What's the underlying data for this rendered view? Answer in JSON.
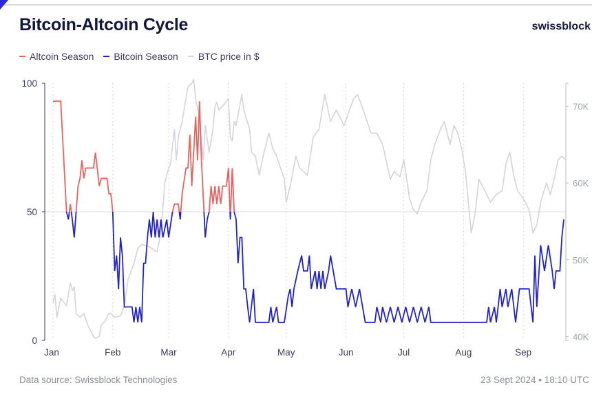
{
  "header": {
    "title": "Bitcoin-Altcoin Cycle",
    "brand": "swissblock"
  },
  "legend": [
    {
      "label": "Altcoin Season",
      "color": "#e8625f"
    },
    {
      "label": "Bitcoin Season",
      "color": "#2323c4"
    },
    {
      "label": "BTC price in $",
      "color": "#d3d4dc"
    }
  ],
  "footer": {
    "source": "Data source: Swissblock Technologies",
    "timestamp": "23 Sept 2024 • 18:10 UTC"
  },
  "chart_data": {
    "type": "line",
    "title": "Bitcoin-Altcoin Cycle",
    "x_range": [
      "2024-01-01",
      "2024-09-23"
    ],
    "x_ticks": [
      "Jan",
      "Feb",
      "Mar",
      "Apr",
      "May",
      "Jun",
      "Jul",
      "Aug",
      "Sep"
    ],
    "y_left": {
      "range": [
        0,
        100
      ],
      "ticks": [
        "0",
        "50",
        "100"
      ],
      "threshold": 50
    },
    "y_right": {
      "range": [
        39.5,
        73
      ],
      "ticks": [
        "40K",
        "50K",
        "60K",
        "70K"
      ],
      "unit": "K $"
    },
    "grid": "vertical dotted at months, horizontal at 50",
    "legend_position": "top-left",
    "colors": {
      "above_threshold": "#e8625f",
      "below_threshold": "#2323c4",
      "price": "#d3d4dc"
    },
    "index_series": {
      "name_above": "Altcoin Season",
      "name_below": "Bitcoin Season",
      "points": [
        [
          "01-01",
          93
        ],
        [
          "01-05",
          93
        ],
        [
          "01-08",
          50
        ],
        [
          "01-09",
          47
        ],
        [
          "01-10",
          53
        ],
        [
          "01-11",
          47
        ],
        [
          "01-12",
          40
        ],
        [
          "01-13",
          50
        ],
        [
          "01-14",
          60
        ],
        [
          "01-15",
          63
        ],
        [
          "01-16",
          70
        ],
        [
          "01-17",
          63
        ],
        [
          "01-18",
          67
        ],
        [
          "01-22",
          67
        ],
        [
          "01-23",
          73
        ],
        [
          "01-25",
          60
        ],
        [
          "01-26",
          63
        ],
        [
          "01-29",
          63
        ],
        [
          "01-30",
          57
        ],
        [
          "01-31",
          57
        ],
        [
          "02-01",
          50
        ],
        [
          "02-02",
          27
        ],
        [
          "02-03",
          33
        ],
        [
          "02-04",
          20
        ],
        [
          "02-05",
          40
        ],
        [
          "02-06",
          33
        ],
        [
          "02-07",
          13
        ],
        [
          "02-11",
          13
        ],
        [
          "02-12",
          7
        ],
        [
          "02-13",
          13
        ],
        [
          "02-14",
          7
        ],
        [
          "02-15",
          13
        ],
        [
          "02-16",
          7
        ],
        [
          "02-17",
          30
        ],
        [
          "02-18",
          30
        ],
        [
          "02-19",
          40
        ],
        [
          "02-20",
          47
        ],
        [
          "02-21",
          40
        ],
        [
          "02-22",
          50
        ],
        [
          "02-23",
          40
        ],
        [
          "02-24",
          47
        ],
        [
          "02-25",
          40
        ],
        [
          "02-26",
          47
        ],
        [
          "02-27",
          40
        ],
        [
          "02-29",
          47
        ],
        [
          "03-01",
          40
        ],
        [
          "03-03",
          50
        ],
        [
          "03-04",
          53
        ],
        [
          "03-06",
          53
        ],
        [
          "03-07",
          47
        ],
        [
          "03-08",
          57
        ],
        [
          "03-10",
          67
        ],
        [
          "03-11",
          67
        ],
        [
          "03-12",
          80
        ],
        [
          "03-13",
          60
        ],
        [
          "03-15",
          87
        ],
        [
          "03-16",
          70
        ],
        [
          "03-17",
          93
        ],
        [
          "03-18",
          70
        ],
        [
          "03-20",
          40
        ],
        [
          "03-21",
          47
        ],
        [
          "03-22",
          50
        ],
        [
          "03-23",
          60
        ],
        [
          "03-24",
          53
        ],
        [
          "03-25",
          60
        ],
        [
          "03-26",
          53
        ],
        [
          "03-27",
          60
        ],
        [
          "03-28",
          53
        ],
        [
          "03-29",
          60
        ],
        [
          "03-31",
          60
        ],
        [
          "04-01",
          67
        ],
        [
          "04-02",
          47
        ],
        [
          "04-03",
          67
        ],
        [
          "04-04",
          50
        ],
        [
          "04-05",
          47
        ],
        [
          "04-06",
          30
        ],
        [
          "04-07",
          40
        ],
        [
          "04-08",
          40
        ],
        [
          "04-09",
          20
        ],
        [
          "04-10",
          20
        ],
        [
          "04-11",
          13
        ],
        [
          "04-12",
          7
        ],
        [
          "04-14",
          20
        ],
        [
          "04-15",
          7
        ],
        [
          "04-22",
          7
        ],
        [
          "04-23",
          13
        ],
        [
          "04-24",
          7
        ],
        [
          "04-26",
          13
        ],
        [
          "04-27",
          7
        ],
        [
          "04-30",
          7
        ],
        [
          "05-02",
          17
        ],
        [
          "05-03",
          20
        ],
        [
          "05-04",
          13
        ],
        [
          "05-05",
          20
        ],
        [
          "05-07",
          27
        ],
        [
          "05-09",
          33
        ],
        [
          "05-10",
          27
        ],
        [
          "05-12",
          27
        ],
        [
          "05-13",
          33
        ],
        [
          "05-14",
          20
        ],
        [
          "05-16",
          27
        ],
        [
          "05-17",
          20
        ],
        [
          "05-18",
          27
        ],
        [
          "05-19",
          20
        ],
        [
          "05-20",
          27
        ],
        [
          "05-21",
          20
        ],
        [
          "05-23",
          27
        ],
        [
          "05-24",
          33
        ],
        [
          "05-27",
          20
        ],
        [
          "06-01",
          20
        ],
        [
          "06-02",
          13
        ],
        [
          "06-04",
          20
        ],
        [
          "06-06",
          13
        ],
        [
          "06-08",
          20
        ],
        [
          "06-11",
          7
        ],
        [
          "06-16",
          7
        ],
        [
          "06-17",
          13
        ],
        [
          "06-19",
          7
        ],
        [
          "06-20",
          13
        ],
        [
          "06-22",
          7
        ],
        [
          "06-24",
          13
        ],
        [
          "06-26",
          7
        ],
        [
          "06-28",
          13
        ],
        [
          "06-30",
          7
        ],
        [
          "07-02",
          13
        ],
        [
          "07-04",
          7
        ],
        [
          "07-06",
          13
        ],
        [
          "07-08",
          7
        ],
        [
          "07-10",
          13
        ],
        [
          "07-12",
          7
        ],
        [
          "07-14",
          13
        ],
        [
          "07-15",
          7
        ],
        [
          "08-13",
          7
        ],
        [
          "08-14",
          13
        ],
        [
          "08-15",
          7
        ],
        [
          "08-17",
          13
        ],
        [
          "08-18",
          7
        ],
        [
          "08-20",
          20
        ],
        [
          "08-21",
          13
        ],
        [
          "08-23",
          20
        ],
        [
          "08-24",
          13
        ],
        [
          "08-26",
          20
        ],
        [
          "08-28",
          7
        ],
        [
          "08-30",
          20
        ],
        [
          "09-04",
          20
        ],
        [
          "09-06",
          7
        ],
        [
          "09-07",
          33
        ],
        [
          "09-08",
          13
        ],
        [
          "09-10",
          37
        ],
        [
          "09-12",
          27
        ],
        [
          "09-14",
          37
        ],
        [
          "09-16",
          27
        ],
        [
          "09-17",
          20
        ],
        [
          "09-18",
          27
        ],
        [
          "09-20",
          27
        ],
        [
          "09-21",
          40
        ],
        [
          "09-22",
          47
        ]
      ]
    },
    "price_series": {
      "name": "BTC price in $",
      "unit": "K $",
      "points": [
        [
          "01-01",
          44.4
        ],
        [
          "01-02",
          45.5
        ],
        [
          "01-03",
          42.5
        ],
        [
          "01-05",
          45
        ],
        [
          "01-08",
          44
        ],
        [
          "01-10",
          47
        ],
        [
          "01-11",
          46
        ],
        [
          "01-12",
          46.5
        ],
        [
          "01-13",
          43
        ],
        [
          "01-15",
          42.5
        ],
        [
          "01-17",
          43
        ],
        [
          "01-19",
          41.5
        ],
        [
          "01-22",
          40
        ],
        [
          "01-23",
          39.8
        ],
        [
          "01-25",
          40
        ],
        [
          "01-26",
          41.5
        ],
        [
          "01-28",
          42
        ],
        [
          "01-30",
          43
        ],
        [
          "01-31",
          43
        ],
        [
          "02-02",
          42.5
        ],
        [
          "02-05",
          42.7
        ],
        [
          "02-07",
          44
        ],
        [
          "02-09",
          47.5
        ],
        [
          "02-12",
          49.5
        ],
        [
          "02-14",
          51.5
        ],
        [
          "02-16",
          52
        ],
        [
          "02-19",
          51.8
        ],
        [
          "02-21",
          51.5
        ],
        [
          "02-24",
          51
        ],
        [
          "02-26",
          53.5
        ],
        [
          "02-28",
          60
        ],
        [
          "03-01",
          62
        ],
        [
          "03-02",
          62.5
        ],
        [
          "03-04",
          67
        ],
        [
          "03-05",
          63
        ],
        [
          "03-06",
          66
        ],
        [
          "03-08",
          68
        ],
        [
          "03-11",
          72.5
        ],
        [
          "03-13",
          73
        ],
        [
          "03-14",
          73.5
        ],
        [
          "03-15",
          71
        ],
        [
          "03-17",
          68.5
        ],
        [
          "03-19",
          63
        ],
        [
          "03-20",
          67.5
        ],
        [
          "03-22",
          64
        ],
        [
          "03-24",
          67
        ],
        [
          "03-25",
          70
        ],
        [
          "03-26",
          70.5
        ],
        [
          "03-27",
          69.5
        ],
        [
          "03-29",
          70
        ],
        [
          "04-01",
          71
        ],
        [
          "04-02",
          66
        ],
        [
          "04-03",
          65.5
        ],
        [
          "04-04",
          68
        ],
        [
          "04-05",
          67.5
        ],
        [
          "04-08",
          71.5
        ],
        [
          "04-09",
          69.5
        ],
        [
          "04-12",
          67
        ],
        [
          "04-13",
          64
        ],
        [
          "04-15",
          63.5
        ],
        [
          "04-17",
          61
        ],
        [
          "04-19",
          63.5
        ],
        [
          "04-22",
          66.5
        ],
        [
          "04-24",
          64.5
        ],
        [
          "04-26",
          63.5
        ],
        [
          "04-30",
          60.5
        ],
        [
          "05-01",
          57.5
        ],
        [
          "05-03",
          59.5
        ],
        [
          "05-06",
          63.5
        ],
        [
          "05-08",
          62
        ],
        [
          "05-12",
          61
        ],
        [
          "05-15",
          66
        ],
        [
          "05-18",
          67
        ],
        [
          "05-21",
          71.5
        ],
        [
          "05-24",
          68
        ],
        [
          "05-27",
          69.5
        ],
        [
          "05-31",
          67.5
        ],
        [
          "06-05",
          71
        ],
        [
          "06-07",
          71.5
        ],
        [
          "06-10",
          69.5
        ],
        [
          "06-14",
          66.5
        ],
        [
          "06-17",
          66.5
        ],
        [
          "06-20",
          65
        ],
        [
          "06-24",
          60.5
        ],
        [
          "06-26",
          61.5
        ],
        [
          "06-29",
          60.8
        ],
        [
          "07-01",
          63
        ],
        [
          "07-04",
          58
        ],
        [
          "07-06",
          56.5
        ],
        [
          "07-08",
          56
        ],
        [
          "07-10",
          57.5
        ],
        [
          "07-13",
          59
        ],
        [
          "07-15",
          63
        ],
        [
          "07-17",
          65
        ],
        [
          "07-20",
          67
        ],
        [
          "07-22",
          68
        ],
        [
          "07-25",
          65
        ],
        [
          "07-27",
          67.5
        ],
        [
          "07-29",
          66.5
        ],
        [
          "07-31",
          64.5
        ],
        [
          "08-02",
          61.5
        ],
        [
          "08-05",
          53.5
        ],
        [
          "08-07",
          56
        ],
        [
          "08-09",
          60.5
        ],
        [
          "08-12",
          59
        ],
        [
          "08-15",
          57.5
        ],
        [
          "08-18",
          58.5
        ],
        [
          "08-21",
          59
        ],
        [
          "08-23",
          62.5
        ],
        [
          "08-25",
          64
        ],
        [
          "08-27",
          61
        ],
        [
          "08-29",
          59
        ],
        [
          "09-01",
          58
        ],
        [
          "09-04",
          56.5
        ],
        [
          "09-06",
          53.5
        ],
        [
          "09-08",
          54.5
        ],
        [
          "09-10",
          57.5
        ],
        [
          "09-13",
          60
        ],
        [
          "09-15",
          58.5
        ],
        [
          "09-17",
          60.5
        ],
        [
          "09-19",
          63
        ],
        [
          "09-21",
          63.5
        ],
        [
          "09-23",
          63
        ]
      ]
    }
  }
}
